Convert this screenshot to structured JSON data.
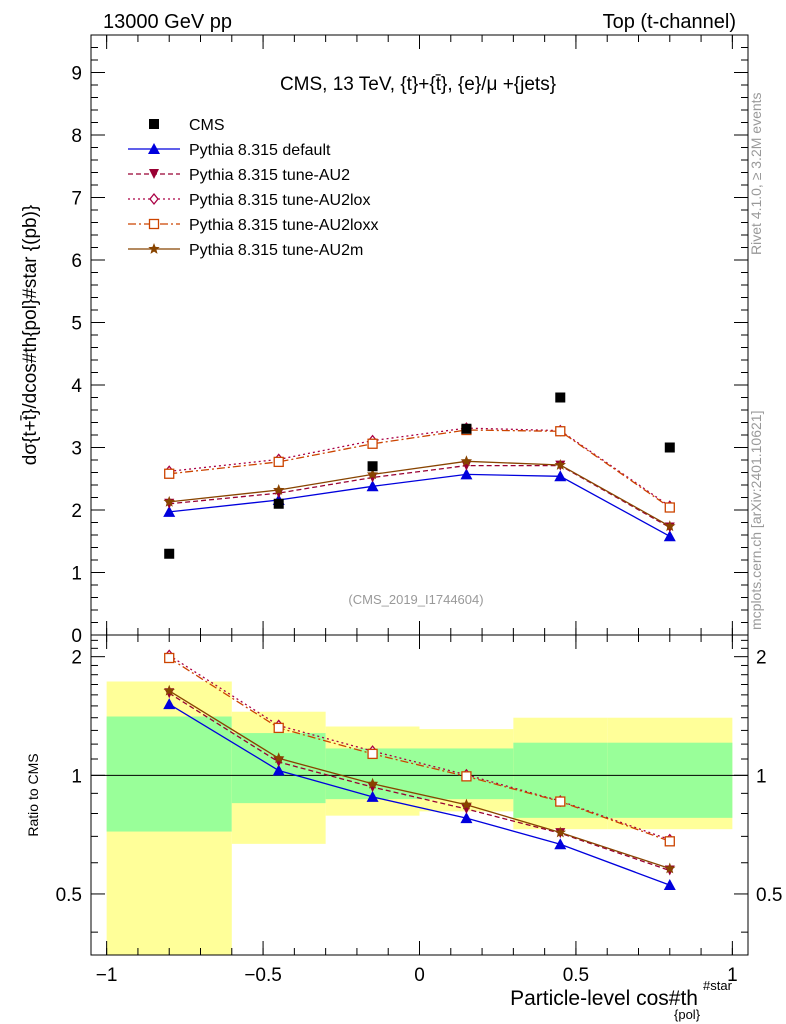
{
  "header": {
    "left": "13000 GeV pp",
    "right": "Top (t-channel)"
  },
  "side_labels": {
    "rivet": "Rivet 4.1.0, ≥ 3.2M events",
    "mcplots": "mcplots.cern.ch [arXiv:2401.10621]"
  },
  "watermark": "(CMS_2019_I1744604)",
  "chart_data": {
    "type": "line",
    "title": "CMS, 13 TeV, {t}+{t̄}, {e}/μ +{jets}",
    "xlabel": "Particle-level cos#th",
    "xlabel_sub": "{pol}",
    "xlabel_sup": "#star",
    "ylabel": "dσ{t+t̄}/dcos#th{pol}#star {(pb)}",
    "ratio_ylabel": "Ratio to CMS",
    "xlim": [
      -1.05,
      1.05
    ],
    "ylim": [
      0,
      9.6
    ],
    "ratio_ylim": [
      0.35,
      2.27
    ],
    "x_ticks": [
      -1,
      -0.5,
      0,
      0.5,
      1
    ],
    "x_tick_labels": [
      "−1",
      "−0.5",
      "0",
      "0.5",
      "1"
    ],
    "y_ticks": [
      0,
      1,
      2,
      3,
      4,
      5,
      6,
      7,
      8,
      9
    ],
    "y_tick_labels": [
      "0",
      "1",
      "2",
      "3",
      "4",
      "5",
      "6",
      "7",
      "8",
      "9"
    ],
    "ratio_ticks": [
      0.5,
      1,
      2
    ],
    "ratio_tick_labels": [
      "0.5",
      "1",
      "2"
    ],
    "x": [
      -0.8,
      -0.45,
      -0.15,
      0.15,
      0.45,
      0.8
    ],
    "bin_edges": [
      -1,
      -0.6,
      -0.3,
      0,
      0.3,
      0.6,
      1
    ],
    "data": {
      "name": "CMS",
      "values": [
        1.3,
        2.1,
        2.7,
        3.3,
        3.8,
        3.0
      ]
    },
    "series": [
      {
        "name": "Pythia 8.315 default",
        "values": [
          1.97,
          2.16,
          2.38,
          2.57,
          2.54,
          1.58
        ],
        "color": "#0000dd",
        "dash": "",
        "marker": "triangle-up"
      },
      {
        "name": "Pythia 8.315 tune-AU2",
        "values": [
          2.1,
          2.27,
          2.52,
          2.71,
          2.71,
          1.72
        ],
        "color": "#990033",
        "dash": "5,3",
        "marker": "triangle-down"
      },
      {
        "name": "Pythia 8.315 tune-AU2lox",
        "values": [
          2.62,
          2.81,
          3.11,
          3.31,
          3.27,
          2.06
        ],
        "color": "#aa0044",
        "dash": "2,3",
        "marker": "diamond-open"
      },
      {
        "name": "Pythia 8.315 tune-AU2loxx",
        "values": [
          2.58,
          2.77,
          3.06,
          3.28,
          3.26,
          2.04
        ],
        "color": "#cc4400",
        "dash": "8,3,2,3",
        "marker": "square-open"
      },
      {
        "name": "Pythia 8.315 tune-AU2m",
        "values": [
          2.13,
          2.32,
          2.57,
          2.78,
          2.72,
          1.74
        ],
        "color": "#884400",
        "dash": "",
        "marker": "star"
      }
    ],
    "ratio_bands": {
      "yellow_low": [
        0.35,
        0.67,
        0.79,
        0.81,
        0.73,
        0.73
      ],
      "yellow_high": [
        1.73,
        1.45,
        1.33,
        1.31,
        1.4,
        1.4
      ],
      "green_low": [
        0.72,
        0.85,
        0.87,
        0.87,
        0.78,
        0.78
      ],
      "green_high": [
        1.41,
        1.28,
        1.17,
        1.17,
        1.21,
        1.21
      ],
      "yellow_color": "#ffff99",
      "green_color": "#99ff99"
    }
  }
}
